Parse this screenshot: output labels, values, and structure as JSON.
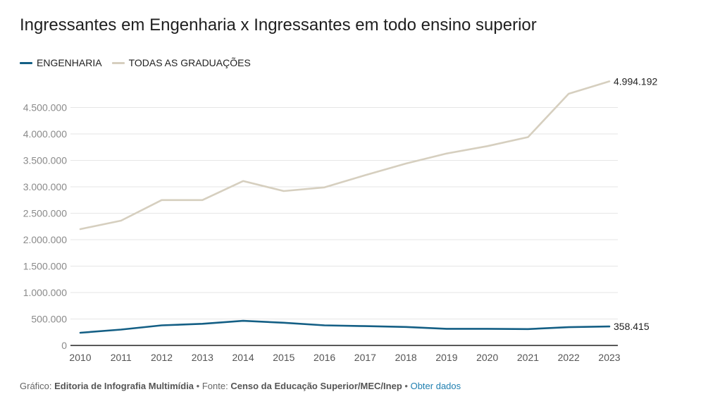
{
  "title": "Ingressantes em Engenharia x Ingressantes em todo ensino superior",
  "footer": {
    "grafico_label": "Gráfico:",
    "grafico_value": "Editoria de Infografia Multimídia",
    "fonte_label": "• Fonte:",
    "fonte_value": "Censo da Educação Superior/MEC/Inep",
    "separator": "•",
    "link": "Obter dados"
  },
  "chart_data": {
    "type": "line",
    "title": "Ingressantes em Engenharia x Ingressantes em todo ensino superior",
    "xlabel": "",
    "ylabel": "",
    "x": [
      2010,
      2011,
      2012,
      2013,
      2014,
      2015,
      2016,
      2017,
      2018,
      2019,
      2020,
      2021,
      2022,
      2023
    ],
    "ylim": [
      0,
      5000000
    ],
    "yticks": [
      0,
      500000,
      1000000,
      1500000,
      2000000,
      2500000,
      3000000,
      3500000,
      4000000,
      4500000
    ],
    "ytick_labels": [
      "0",
      "500.000",
      "1.000.000",
      "1.500.000",
      "2.000.000",
      "2.500.000",
      "3.000.000",
      "3.500.000",
      "4.000.000",
      "4.500.000"
    ],
    "grid": true,
    "legend_position": "top-left",
    "series": [
      {
        "name": "ENGENHARIA",
        "color": "#145f85",
        "values": [
          240000,
          300000,
          380000,
          410000,
          465000,
          430000,
          380000,
          365000,
          350000,
          315000,
          315000,
          310000,
          345000,
          358415
        ],
        "end_label": "358.415"
      },
      {
        "name": "TODAS AS GRADUAÇÕES",
        "color": "#d6cfbf",
        "values": [
          2200000,
          2360000,
          2750000,
          2750000,
          3110000,
          2920000,
          2990000,
          3220000,
          3440000,
          3630000,
          3770000,
          3940000,
          4760000,
          4994192
        ],
        "end_label": "4.994.192"
      }
    ]
  }
}
